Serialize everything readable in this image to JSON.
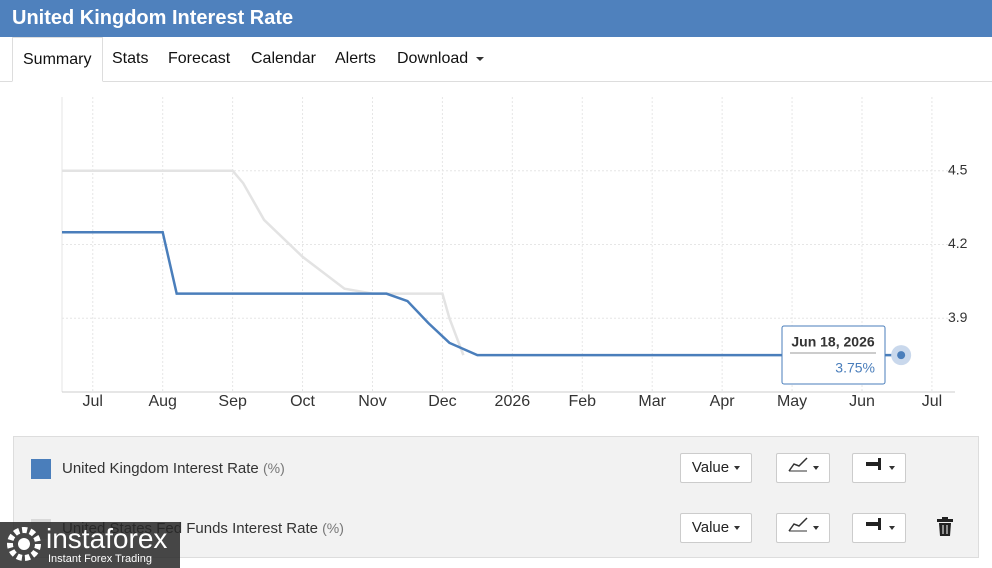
{
  "header": {
    "title": "United Kingdom Interest Rate"
  },
  "tabs": [
    "Summary",
    "Stats",
    "Forecast",
    "Calendar",
    "Alerts",
    "Download"
  ],
  "chart_data": {
    "type": "line",
    "xlim": [
      -0.44,
      12.33
    ],
    "xticks": [
      {
        "value": 0,
        "label": "Jul"
      },
      {
        "value": 1,
        "label": "Aug"
      },
      {
        "value": 2,
        "label": "Sep"
      },
      {
        "value": 3,
        "label": "Oct"
      },
      {
        "value": 4,
        "label": "Nov"
      },
      {
        "value": 5,
        "label": "Dec"
      },
      {
        "value": 6,
        "label": "2026"
      },
      {
        "value": 7,
        "label": "Feb"
      },
      {
        "value": 8,
        "label": "Mar"
      },
      {
        "value": 9,
        "label": "Apr"
      },
      {
        "value": 10,
        "label": "May"
      },
      {
        "value": 11,
        "label": "Jun"
      },
      {
        "value": 12,
        "label": "Jul"
      }
    ],
    "ylim": [
      3.6,
      4.8
    ],
    "yticks": [
      3.9,
      4.2,
      4.5
    ],
    "series": [
      {
        "name": "United States Fed Funds Interest Rate",
        "unit": "(%)",
        "color": "#e3e3e3",
        "x": [
          -0.44,
          2.0,
          2.15,
          2.45,
          3.0,
          3.6,
          4.0,
          5.0,
          5.1,
          5.3
        ],
        "values": [
          4.5,
          4.5,
          4.45,
          4.3,
          4.15,
          4.02,
          4.0,
          4.0,
          3.9,
          3.75
        ]
      },
      {
        "name": "United Kingdom Interest Rate",
        "unit": "(%)",
        "color": "#4a7ebb",
        "x": [
          -0.44,
          1.0,
          1.08,
          1.2,
          4.2,
          4.5,
          4.8,
          5.1,
          5.5,
          11.56
        ],
        "values": [
          4.25,
          4.25,
          4.15,
          4.0,
          4.0,
          3.97,
          3.88,
          3.8,
          3.75,
          3.75
        ]
      }
    ],
    "tooltip": {
      "label": "Jun 18, 2026",
      "x": 11.56,
      "value": 3.75,
      "value_label": "3.75%"
    },
    "grid": true
  },
  "controls": {
    "value_button": "Value"
  },
  "watermark": {
    "brand": "instaforex",
    "tagline": "Instant Forex Trading"
  }
}
